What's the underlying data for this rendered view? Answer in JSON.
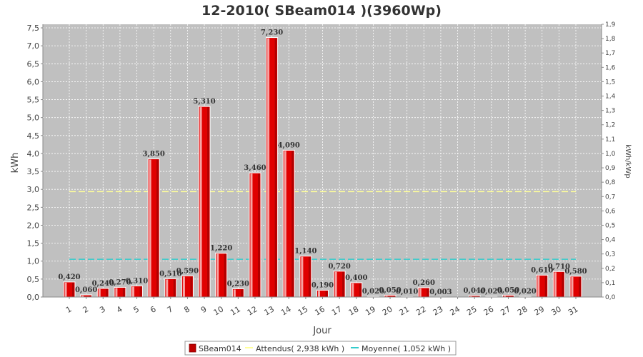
{
  "chart_data": {
    "type": "bar",
    "title": "12-2010( SBeam014 )(3960Wp)",
    "xlabel": "Jour",
    "ylabel": "kWh",
    "y2label": "kWh/kWp",
    "ylim": [
      0,
      7.6
    ],
    "y2lim": [
      0,
      1.9
    ],
    "yticks": [
      "0,0",
      "0,5",
      "1,0",
      "1,5",
      "2,0",
      "2,5",
      "3,0",
      "3,5",
      "4,0",
      "4,5",
      "5,0",
      "5,5",
      "6,0",
      "6,5",
      "7,0",
      "7,5"
    ],
    "y2ticks": [
      "0,0",
      "0,1",
      "0,2",
      "0,3",
      "0,4",
      "0,5",
      "0,6",
      "0,7",
      "0,8",
      "0,9",
      "1,0",
      "1,1",
      "1,2",
      "1,3",
      "1,4",
      "1,5",
      "1,6",
      "1,7",
      "1,8",
      "1,9"
    ],
    "categories": [
      "1",
      "2",
      "3",
      "4",
      "5",
      "6",
      "7",
      "8",
      "9",
      "10",
      "11",
      "12",
      "13",
      "14",
      "15",
      "16",
      "17",
      "18",
      "19",
      "20",
      "21",
      "22",
      "23",
      "24",
      "25",
      "26",
      "27",
      "28",
      "29",
      "30",
      "31"
    ],
    "series": [
      {
        "name": "SBeam014",
        "color": "#e00000",
        "values": [
          0.42,
          0.06,
          0.24,
          0.27,
          0.31,
          3.85,
          0.51,
          0.59,
          5.31,
          1.22,
          0.23,
          3.46,
          7.23,
          4.09,
          1.14,
          0.19,
          0.72,
          0.4,
          0.02,
          0.05,
          0.01,
          0.26,
          0.003,
          0,
          0.04,
          0.02,
          0.05,
          0.02,
          0.61,
          0.71,
          0.58
        ],
        "labels": [
          "0,420",
          "0,060",
          "0,240",
          "0,270",
          "0,310",
          "3,850",
          "0,510",
          "0,590",
          "5,310",
          "1,220",
          "0,230",
          "3,460",
          "7,230",
          "4,090",
          "1,140",
          "0,190",
          "0,720",
          "0,400",
          "0,020",
          "0,050",
          "0,010",
          "0,260",
          "0,003",
          "",
          "0,040",
          "0,020",
          "0,050",
          "0,020",
          "0,610",
          "0,710",
          "0,580"
        ]
      }
    ],
    "reference_lines": [
      {
        "name": "Attendus( 2,938 kWh )",
        "value": 2.938,
        "color": "#ffff99"
      },
      {
        "name": "Moyenne( 1,052 kWh )",
        "value": 1.052,
        "color": "#33cccc"
      }
    ],
    "grid": true,
    "legend_position": "bottom"
  }
}
